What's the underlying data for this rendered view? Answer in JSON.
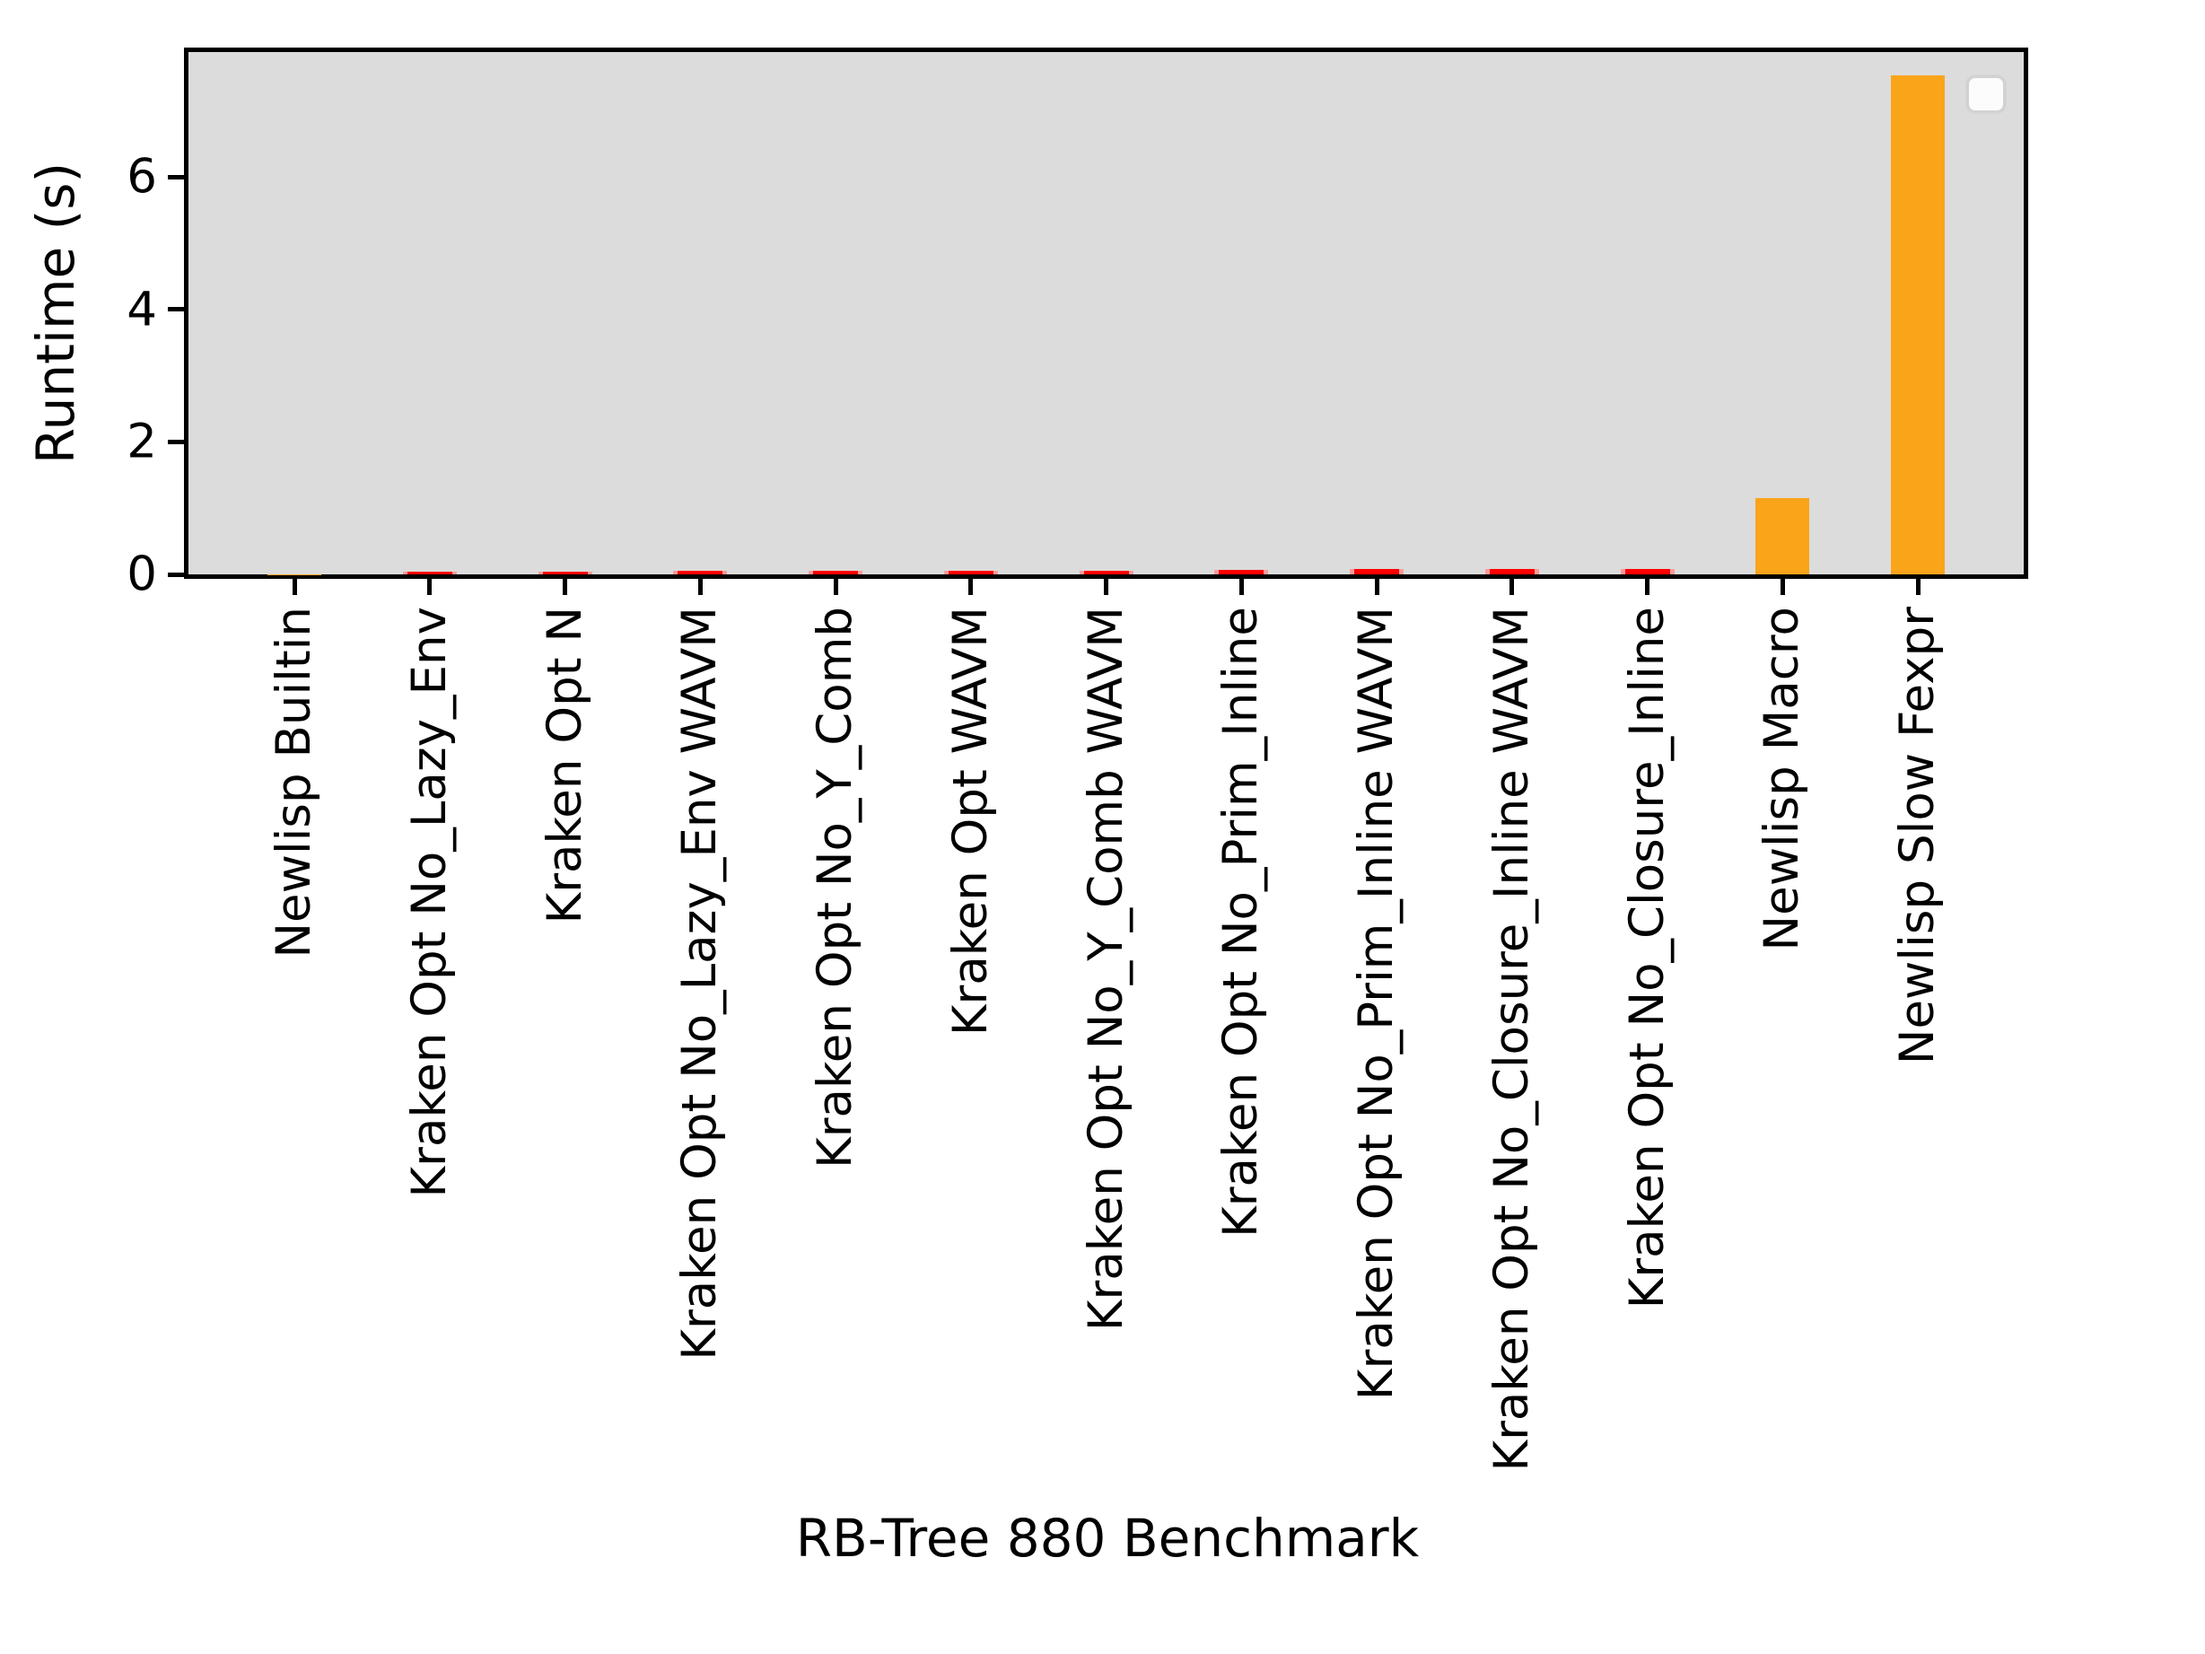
{
  "chart_data": {
    "type": "bar",
    "title": "",
    "xlabel": "RB-Tree 880 Benchmark",
    "ylabel": "Runtime (s)",
    "categories": [
      "Newlisp Builtin",
      "Kraken Opt No_Lazy_Env",
      "Kraken Opt N",
      "Kraken Opt No_Lazy_Env WAVM",
      "Kraken Opt No_Y_Comb",
      "Kraken Opt WAVM",
      "Kraken Opt No_Y_Comb WAVM",
      "Kraken Opt No_Prim_Inline",
      "Kraken Opt No_Prim_Inline WAVM",
      "Kraken Opt No_Closure_Inline WAVM",
      "Kraken Opt No_Closure_Inline",
      "Newlisp Macro",
      "Newlisp Slow Fexpr"
    ],
    "values": [
      0.005,
      0.04,
      0.04,
      0.05,
      0.05,
      0.05,
      0.05,
      0.07,
      0.08,
      0.08,
      0.08,
      1.15,
      7.54
    ],
    "bar_colors": [
      "#FAA41A",
      "#FF0000",
      "#FF0000",
      "#FF0000",
      "#FF0000",
      "#FF0000",
      "#FF0000",
      "#FF0000",
      "#FF0000",
      "#FF0000",
      "#FF0000",
      "#FAA41A",
      "#FAA41A"
    ],
    "bar_edge_colors": [
      null,
      "#FF9B9B",
      "#FF9B9B",
      "#FF9B9B",
      "#FF9B9B",
      "#FF9B9B",
      "#FF9B9B",
      "#FF9B9B",
      "#FF9B9B",
      "#FF9B9B",
      "#FF9B9B",
      null,
      null
    ],
    "ylim": [
      0,
      7.89
    ],
    "yticks": [
      "0",
      "2",
      "4",
      "6"
    ],
    "ytick_values": [
      0,
      2,
      4,
      6
    ],
    "grid": false,
    "plot_background": "#DCDCDC",
    "axes_edge_color": "#000000",
    "legend": {
      "visible": true,
      "entries": [],
      "position": "upper right"
    }
  }
}
